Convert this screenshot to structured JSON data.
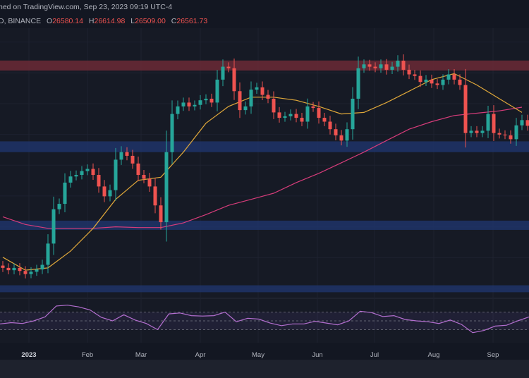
{
  "header": {
    "published": "hed on TradingView.com, Sep 23, 2023 09:19 UTC-4",
    "symbol": "D, BINANCE",
    "open_label": "O",
    "open": "26580.14",
    "high_label": "H",
    "high": "26614.98",
    "low_label": "L",
    "low": "26509.00",
    "close_label": "C",
    "close": "26561.73"
  },
  "colors": {
    "background": "#161a25",
    "up": "#26a69a",
    "down": "#ef5350",
    "ma_fast": "#e0a83a",
    "ma_slow": "#d63c7a",
    "rsi": "#b46fd0",
    "resistance_zone": "#6b2a36",
    "support_zone": "#1f3468"
  },
  "chart_data": [
    {
      "type": "candlestick",
      "title": "",
      "xlabel": "",
      "ylabel": "",
      "x_tick_labels": [
        "2023",
        "Feb",
        "Mar",
        "Apr",
        "May",
        "Jun",
        "Jul",
        "Aug",
        "Sep"
      ],
      "ylim": [
        15400,
        32900
      ],
      "grid": true,
      "closes": [
        17330,
        17180,
        17330,
        17130,
        16930,
        17080,
        17230,
        17530,
        18910,
        21140,
        21490,
        22870,
        23270,
        23370,
        23620,
        23760,
        23370,
        22620,
        21980,
        22380,
        24360,
        24850,
        24610,
        24110,
        23370,
        23120,
        22620,
        21390,
        20300,
        24850,
        27330,
        27820,
        28070,
        27820,
        27920,
        28220,
        28320,
        28070,
        29560,
        30400,
        30300,
        28810,
        27580,
        27820,
        28910,
        29060,
        28570,
        28320,
        27430,
        27080,
        27180,
        27330,
        27080,
        26830,
        27820,
        27720,
        27080,
        26830,
        26340,
        25940,
        25600,
        26340,
        28320,
        30300,
        30550,
        30400,
        30300,
        30550,
        30200,
        30400,
        30790,
        30200,
        29900,
        29800,
        29410,
        29560,
        29310,
        29210,
        29560,
        29900,
        29560,
        29210,
        26090,
        26240,
        26090,
        26240,
        27330,
        26090,
        25990,
        25940,
        25690,
        26590,
        26930,
        26561.73
      ],
      "moving_average_fast": [
        18020,
        17180,
        17330,
        18420,
        19900,
        21780,
        23020,
        23220,
        24850,
        26730,
        27820,
        28420,
        28420,
        28220,
        27820,
        27330,
        27430,
        28070,
        28810,
        29560,
        29950,
        29210,
        28320,
        27430
      ],
      "moving_average_slow": [
        20650,
        20150,
        19900,
        19900,
        19900,
        20000,
        19950,
        19950,
        20250,
        20790,
        21390,
        21780,
        22180,
        22870,
        23470,
        24160,
        24850,
        25600,
        26340,
        26830,
        27230,
        27380,
        27530,
        27770
      ],
      "zones": [
        {
          "kind": "resistance",
          "range": [
            30150,
            30800
          ]
        },
        {
          "kind": "support",
          "range": [
            24850,
            25550
          ]
        },
        {
          "kind": "support",
          "range": [
            19800,
            20400
          ]
        },
        {
          "kind": "support",
          "range": [
            15750,
            16200
          ]
        }
      ]
    },
    {
      "type": "line",
      "title": "",
      "ylim": [
        0,
        100
      ],
      "bands": [
        30,
        50,
        70
      ],
      "values": [
        43,
        46,
        44,
        50,
        59,
        84,
        86,
        82,
        75,
        58,
        50,
        64,
        52,
        44,
        30,
        66,
        68,
        62,
        61,
        62,
        70,
        48,
        56,
        54,
        45,
        39,
        43,
        43,
        49,
        45,
        41,
        50,
        72,
        69,
        60,
        62,
        53,
        50,
        48,
        44,
        52,
        42,
        23,
        28,
        38,
        40,
        50,
        59
      ]
    }
  ]
}
